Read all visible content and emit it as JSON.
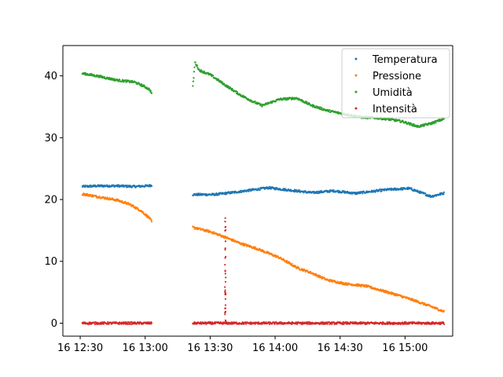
{
  "chart_data": {
    "type": "scatter",
    "title": "",
    "xlabel": "",
    "ylabel": "",
    "x_unit": "minutes",
    "xlim": [
      "12:22",
      "15:22"
    ],
    "ylim": [
      -2.1,
      44.9
    ],
    "grid": false,
    "legend_position": "upper right",
    "x_ticks": [
      {
        "value": "12:30",
        "label": "16 12:30"
      },
      {
        "value": "13:00",
        "label": "16 13:00"
      },
      {
        "value": "13:30",
        "label": "16 13:30"
      },
      {
        "value": "14:00",
        "label": "16 14:00"
      },
      {
        "value": "14:30",
        "label": "16 14:30"
      },
      {
        "value": "15:00",
        "label": "16 15:00"
      }
    ],
    "y_ticks": [
      0,
      10,
      20,
      30,
      40
    ],
    "series": [
      {
        "name": "Temperatura",
        "color": "#1f77b4",
        "segments": [
          {
            "from": "12:31",
            "to": "13:03",
            "values": [
              [
                0,
                22.1
              ],
              [
                8,
                22.2
              ],
              [
                16,
                22.2
              ],
              [
                24,
                22.1
              ],
              [
                30,
                22.2
              ],
              [
                32,
                22.3
              ]
            ]
          },
          {
            "from": "13:22",
            "to": "15:18",
            "values": [
              [
                0,
                20.8
              ],
              [
                10,
                20.8
              ],
              [
                20,
                21.2
              ],
              [
                35,
                21.9
              ],
              [
                45,
                21.5
              ],
              [
                55,
                21.1
              ],
              [
                65,
                21.4
              ],
              [
                75,
                21.0
              ],
              [
                90,
                21.6
              ],
              [
                100,
                21.8
              ],
              [
                107,
                20.9
              ],
              [
                110,
                20.5
              ],
              [
                118,
                21.2
              ],
              [
                125,
                21.5
              ],
              [
                136,
                21.4
              ]
            ]
          }
        ]
      },
      {
        "name": "Pressione",
        "color": "#ff7f0e",
        "segments": [
          {
            "from": "12:31",
            "to": "13:03",
            "values": [
              [
                0,
                20.9
              ],
              [
                8,
                20.4
              ],
              [
                16,
                19.9
              ],
              [
                22,
                19.2
              ],
              [
                27,
                18.2
              ],
              [
                31,
                17.0
              ],
              [
                32,
                16.4
              ]
            ]
          },
          {
            "from": "13:22",
            "to": "15:18",
            "values": [
              [
                0,
                15.5
              ],
              [
                8,
                14.8
              ],
              [
                15,
                13.9
              ],
              [
                22,
                12.9
              ],
              [
                30,
                12.0
              ],
              [
                40,
                10.6
              ],
              [
                48,
                9.0
              ],
              [
                55,
                8.1
              ],
              [
                62,
                7.0
              ],
              [
                70,
                6.4
              ],
              [
                80,
                6.0
              ],
              [
                88,
                5.2
              ],
              [
                95,
                4.5
              ],
              [
                102,
                3.7
              ],
              [
                110,
                2.7
              ],
              [
                118,
                1.6
              ],
              [
                124,
                1.0
              ],
              [
                126,
                0.6
              ],
              [
                130,
                0.3
              ]
            ]
          }
        ]
      },
      {
        "name": "Umidità",
        "color": "#2ca02c",
        "segments": [
          {
            "from": "12:31",
            "to": "13:03",
            "values": [
              [
                0,
                40.4
              ],
              [
                8,
                39.9
              ],
              [
                16,
                39.3
              ],
              [
                24,
                39.0
              ],
              [
                28,
                38.4
              ],
              [
                31,
                37.8
              ],
              [
                32,
                37.2
              ]
            ]
          },
          {
            "from": "13:22",
            "to": "15:18",
            "values": [
              [
                0,
                38.2
              ],
              [
                1,
                42.2
              ],
              [
                3,
                40.9
              ],
              [
                8,
                40.2
              ],
              [
                15,
                38.5
              ],
              [
                22,
                36.9
              ],
              [
                28,
                35.8
              ],
              [
                32,
                35.2
              ],
              [
                40,
                36.2
              ],
              [
                48,
                36.4
              ],
              [
                55,
                35.2
              ],
              [
                62,
                34.4
              ],
              [
                70,
                33.8
              ],
              [
                78,
                33.3
              ],
              [
                85,
                33.2
              ],
              [
                92,
                32.9
              ],
              [
                97,
                32.6
              ],
              [
                104,
                31.8
              ],
              [
                110,
                32.3
              ],
              [
                118,
                33.3
              ],
              [
                125,
                32.6
              ],
              [
                130,
                31.5
              ],
              [
                136,
                30.2
              ]
            ]
          }
        ]
      },
      {
        "name": "Intensità",
        "color": "#d62728",
        "segments": [
          {
            "from": "12:31",
            "to": "13:03",
            "values": [
              [
                0,
                0
              ],
              [
                32,
                0
              ]
            ]
          },
          {
            "from": "13:22",
            "to": "15:18",
            "values": [
              [
                0,
                0
              ],
              [
                136,
                0
              ]
            ]
          }
        ],
        "spike": {
          "x": "13:37",
          "max": 17.0
        }
      }
    ]
  }
}
